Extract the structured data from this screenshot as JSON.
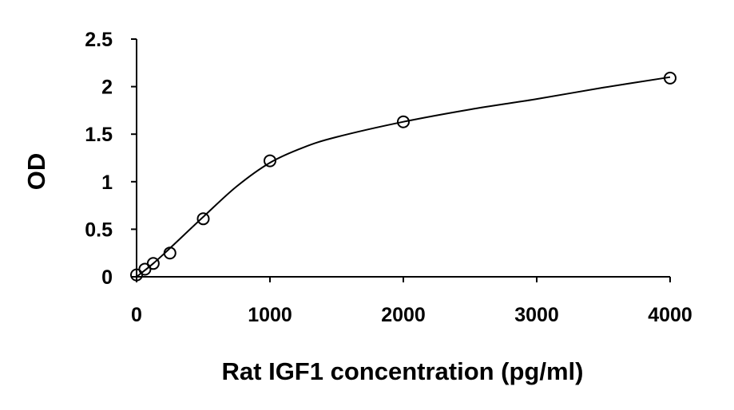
{
  "chart_data": {
    "type": "scatter",
    "title": "",
    "xlabel": "Rat IGF1 concentration (pg/ml)",
    "ylabel": "OD",
    "xlim": [
      0,
      4000
    ],
    "ylim": [
      0,
      2.5
    ],
    "x_ticks": [
      "0",
      "1000",
      "2000",
      "3000",
      "4000"
    ],
    "y_ticks": [
      "0",
      "0.5",
      "1",
      "1.5",
      "2",
      "2.5"
    ],
    "grid": false,
    "legend": "none",
    "series": [
      {
        "marker": "open-circle",
        "color": "#000000",
        "points": [
          {
            "x": 0,
            "y": 0.02
          },
          {
            "x": 62.5,
            "y": 0.08
          },
          {
            "x": 125,
            "y": 0.14
          },
          {
            "x": 250,
            "y": 0.25
          },
          {
            "x": 500,
            "y": 0.61
          },
          {
            "x": 1000,
            "y": 1.22
          },
          {
            "x": 2000,
            "y": 1.63
          },
          {
            "x": 4000,
            "y": 2.09
          }
        ]
      }
    ],
    "fit_curve": {
      "style": "smooth-line",
      "color": "#000000",
      "points": [
        {
          "x": 0,
          "y": 0.0
        },
        {
          "x": 125,
          "y": 0.14
        },
        {
          "x": 250,
          "y": 0.3
        },
        {
          "x": 500,
          "y": 0.63
        },
        {
          "x": 750,
          "y": 0.95
        },
        {
          "x": 1000,
          "y": 1.2
        },
        {
          "x": 1250,
          "y": 1.36
        },
        {
          "x": 1500,
          "y": 1.47
        },
        {
          "x": 2000,
          "y": 1.63
        },
        {
          "x": 2500,
          "y": 1.76
        },
        {
          "x": 3000,
          "y": 1.87
        },
        {
          "x": 3500,
          "y": 1.99
        },
        {
          "x": 4000,
          "y": 2.1
        }
      ]
    }
  }
}
